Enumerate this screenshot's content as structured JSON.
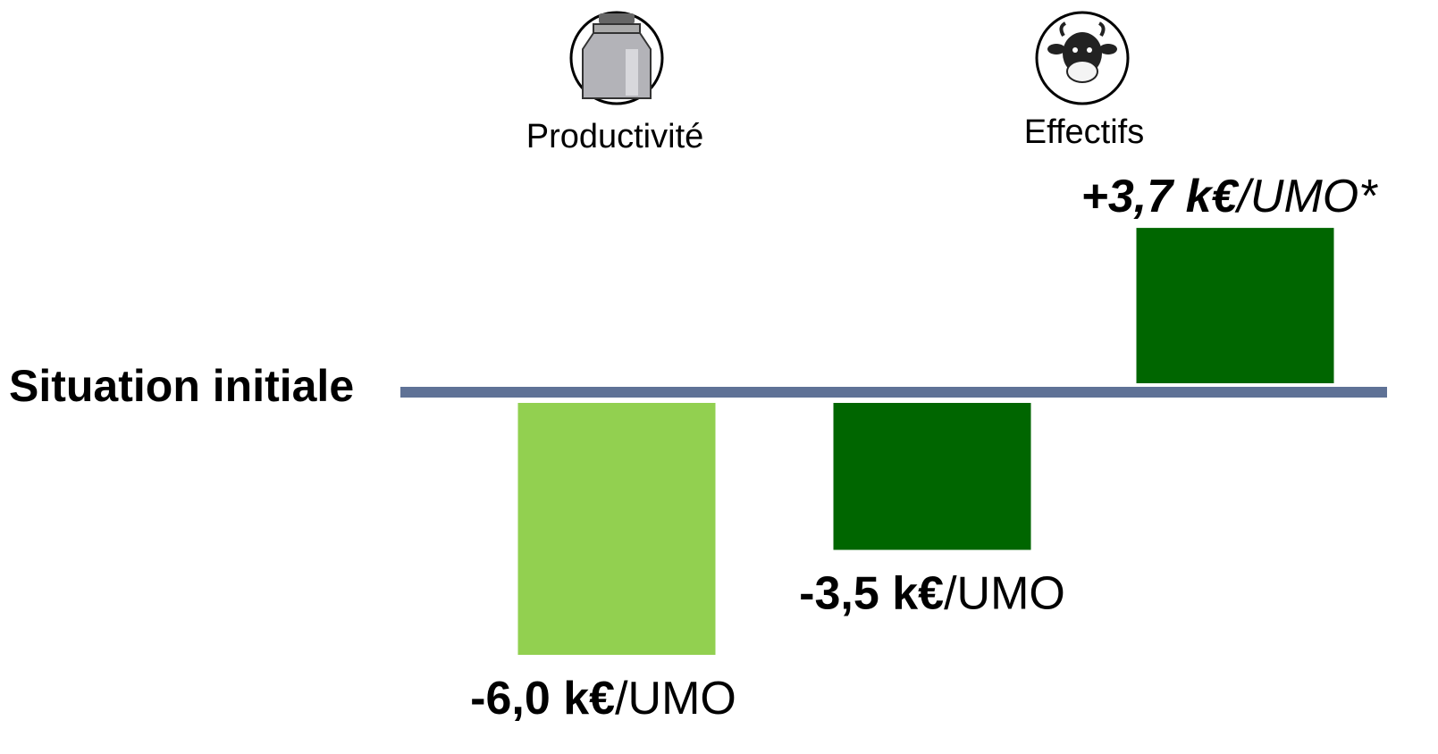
{
  "chart_data": {
    "type": "bar",
    "headers": [
      "Productivité",
      "Effectifs"
    ],
    "baseline_label": "Situation initiale",
    "values": [
      -6.0,
      -3.5,
      3.7
    ],
    "value_labels": [
      [
        "-6,0 k€",
        "/UMO"
      ],
      [
        "-3,5 k€",
        "/UMO"
      ],
      [
        "+3,7 k€",
        "/UMO*"
      ]
    ],
    "colors": [
      "#92d050",
      "#006600",
      "#006600"
    ],
    "baseline_color": "#5f7296"
  }
}
